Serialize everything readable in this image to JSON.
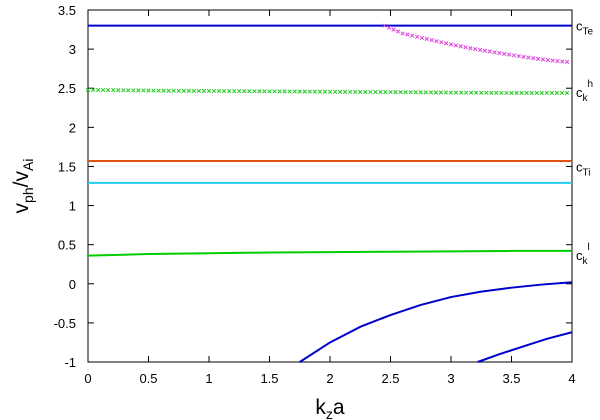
{
  "chart_data": {
    "type": "line",
    "xlabel": {
      "main": "k",
      "sub": "z",
      "tail": "a"
    },
    "ylabel": {
      "main": "v",
      "sub1": "ph",
      "mid": "/v",
      "sub2": "Ai"
    },
    "xlim": [
      0,
      4
    ],
    "ylim": [
      -1,
      3.5
    ],
    "grid": false,
    "legend": "none",
    "x_ticks": [
      "0",
      "0.5",
      "1",
      "1.5",
      "2",
      "2.5",
      "3",
      "3.5",
      "4"
    ],
    "y_ticks": [
      "-1",
      "-0.5",
      "0",
      "0.5",
      "1",
      "1.5",
      "2",
      "2.5",
      "3",
      "3.5"
    ],
    "right_labels": [
      {
        "main": "c",
        "sub": "Te",
        "sup": "",
        "y": 3.3
      },
      {
        "main": "c",
        "sub": "k",
        "sup": "h",
        "y": 2.45
      },
      {
        "main": "c",
        "sub": "Ti",
        "sup": "",
        "y": 1.5
      },
      {
        "main": "c",
        "sub": "k",
        "sup": "l",
        "y": 0.37
      }
    ],
    "series": [
      {
        "style": "line",
        "color": "#0000cc",
        "x": [
          0,
          4
        ],
        "y": [
          3.3,
          3.3
        ]
      },
      {
        "style": "cross",
        "color": "#e040e0",
        "x": [
          2.45,
          2.6,
          2.8,
          3.0,
          3.2,
          3.4,
          3.6,
          3.8,
          4.0
        ],
        "y": [
          3.3,
          3.2,
          3.13,
          3.06,
          3.0,
          2.95,
          2.9,
          2.86,
          2.83
        ]
      },
      {
        "style": "cross",
        "color": "#22cc22",
        "x": [
          0,
          0.5,
          1,
          1.5,
          2,
          2.5,
          3,
          3.5,
          4
        ],
        "y": [
          2.48,
          2.47,
          2.465,
          2.46,
          2.455,
          2.45,
          2.445,
          2.44,
          2.44
        ]
      },
      {
        "style": "line",
        "color": "#dd5511",
        "x": [
          0,
          4
        ],
        "y": [
          1.57,
          1.57
        ]
      },
      {
        "style": "line",
        "color": "#22ccee",
        "x": [
          0,
          4
        ],
        "y": [
          1.29,
          1.29
        ]
      },
      {
        "style": "line",
        "color": "#00cc00",
        "x": [
          0,
          0.5,
          1,
          1.5,
          2,
          2.5,
          3,
          3.5,
          4
        ],
        "y": [
          0.36,
          0.38,
          0.39,
          0.4,
          0.405,
          0.41,
          0.415,
          0.42,
          0.42
        ]
      },
      {
        "style": "line",
        "color": "#0000cc",
        "x": [
          1.75,
          2.0,
          2.25,
          2.5,
          2.75,
          3.0,
          3.25,
          3.5,
          3.75,
          4.0
        ],
        "y": [
          -1.0,
          -0.75,
          -0.55,
          -0.4,
          -0.27,
          -0.17,
          -0.1,
          -0.05,
          -0.01,
          0.02
        ]
      },
      {
        "style": "line",
        "color": "#0000cc",
        "x": [
          3.22,
          3.4,
          3.6,
          3.8,
          4.0
        ],
        "y": [
          -1.0,
          -0.9,
          -0.8,
          -0.7,
          -0.62
        ]
      }
    ]
  }
}
